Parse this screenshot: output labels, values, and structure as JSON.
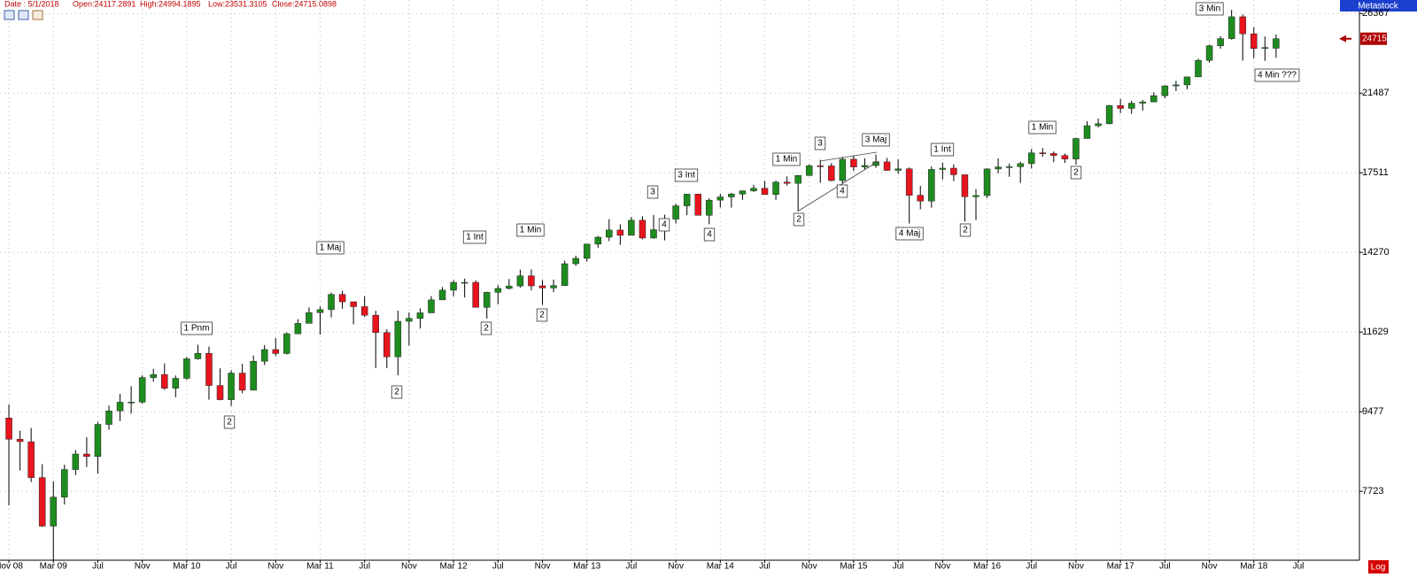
{
  "chart_data": {
    "type": "candlestick",
    "info": [
      "Date : 5/1/2018",
      "Open:24117.2891",
      "High:24994.1895",
      "Low:23531.3105",
      "Close:24715.0898"
    ],
    "badge": "Metastock",
    "scale_label": "Log",
    "price_tag": "24715",
    "log_scale": true,
    "grid": true,
    "up_color": "#1e8c1e",
    "down_color": "#e8141e",
    "ylim": [
      6470,
      27300
    ],
    "yticks": [
      7723,
      9477,
      11629,
      14270,
      17511,
      21487,
      26367
    ],
    "xlim": [
      -0.8,
      121.5
    ],
    "xticks": [
      {
        "value": 0,
        "label": "Nov 08"
      },
      {
        "value": 4,
        "label": "Mar 09"
      },
      {
        "value": 8,
        "label": "Jul"
      },
      {
        "value": 12,
        "label": "Nov"
      },
      {
        "value": 16,
        "label": "Mar 10"
      },
      {
        "value": 20,
        "label": "Jul"
      },
      {
        "value": 24,
        "label": "Nov"
      },
      {
        "value": 28,
        "label": "Mar 11"
      },
      {
        "value": 32,
        "label": "Jul"
      },
      {
        "value": 36,
        "label": "Nov"
      },
      {
        "value": 40,
        "label": "Mar 12"
      },
      {
        "value": 44,
        "label": "Jul"
      },
      {
        "value": 48,
        "label": "Nov"
      },
      {
        "value": 52,
        "label": "Mar 13"
      },
      {
        "value": 56,
        "label": "Jul"
      },
      {
        "value": 60,
        "label": "Nov"
      },
      {
        "value": 64,
        "label": "Mar 14"
      },
      {
        "value": 68,
        "label": "Jul"
      },
      {
        "value": 72,
        "label": "Nov"
      },
      {
        "value": 76,
        "label": "Mar 15"
      },
      {
        "value": 80,
        "label": "Jul"
      },
      {
        "value": 84,
        "label": "Nov"
      },
      {
        "value": 88,
        "label": "Mar 16"
      },
      {
        "value": 92,
        "label": "Jul"
      },
      {
        "value": 96,
        "label": "Nov"
      },
      {
        "value": 100,
        "label": "Mar 17"
      },
      {
        "value": 104,
        "label": "Jul"
      },
      {
        "value": 108,
        "label": "Nov"
      },
      {
        "value": 112,
        "label": "Mar 18"
      },
      {
        "value": 116,
        "label": "Jul"
      }
    ],
    "ohlc": [
      [
        9325,
        9654,
        7450,
        8829
      ],
      [
        8829,
        9026,
        8149,
        8776
      ],
      [
        8772,
        9088,
        7909,
        8001
      ],
      [
        8001,
        8281,
        7050,
        7063
      ],
      [
        7063,
        7925,
        6470,
        7609
      ],
      [
        7609,
        8269,
        7466,
        8168
      ],
      [
        8168,
        8587,
        8053,
        8500
      ],
      [
        8500,
        8877,
        8222,
        8447
      ],
      [
        8447,
        9229,
        8087,
        9172
      ],
      [
        9172,
        9630,
        9049,
        9496
      ],
      [
        9496,
        9918,
        9252,
        9712
      ],
      [
        9712,
        10119,
        9430,
        9713
      ],
      [
        9713,
        10406,
        9679,
        10345
      ],
      [
        10345,
        10580,
        10235,
        10428
      ],
      [
        10428,
        10729,
        10025,
        10067
      ],
      [
        10067,
        10403,
        9836,
        10325
      ],
      [
        10325,
        10908,
        10286,
        10857
      ],
      [
        10857,
        11258,
        10835,
        11009
      ],
      [
        11009,
        11205,
        9774,
        10137
      ],
      [
        10137,
        10594,
        9758,
        9774
      ],
      [
        9774,
        10545,
        9614,
        10466
      ],
      [
        10466,
        10720,
        9936,
        10015
      ],
      [
        10015,
        10948,
        10015,
        10788
      ],
      [
        10788,
        11245,
        10685,
        11118
      ],
      [
        11118,
        11451,
        10929,
        11006
      ],
      [
        11006,
        11625,
        10979,
        11578
      ],
      [
        11578,
        12021,
        11577,
        11892
      ],
      [
        11892,
        12391,
        11892,
        12226
      ],
      [
        12226,
        12419,
        11555,
        12320
      ],
      [
        12320,
        12876,
        12076,
        12811
      ],
      [
        12811,
        12929,
        12348,
        12570
      ],
      [
        12570,
        12571,
        11862,
        12414
      ],
      [
        12414,
        12753,
        12093,
        12143
      ],
      [
        12143,
        12284,
        10605,
        11614
      ],
      [
        11614,
        11717,
        10597,
        10913
      ],
      [
        10913,
        12284,
        10404,
        11955
      ],
      [
        11955,
        12231,
        11231,
        12046
      ],
      [
        12046,
        12360,
        11735,
        12218
      ],
      [
        12218,
        12756,
        12218,
        12633
      ],
      [
        12633,
        13056,
        12623,
        12952
      ],
      [
        12952,
        13289,
        12753,
        13212
      ],
      [
        13212,
        13338,
        12710,
        13214
      ],
      [
        13214,
        13280,
        12391,
        12393
      ],
      [
        12393,
        12899,
        12036,
        12880
      ],
      [
        12880,
        13124,
        12493,
        13009
      ],
      [
        13009,
        13331,
        12972,
        13091
      ],
      [
        13091,
        13653,
        13036,
        13437
      ],
      [
        13437,
        13662,
        12942,
        13096
      ],
      [
        13096,
        13290,
        12471,
        13026
      ],
      [
        13026,
        13311,
        12883,
        13104
      ],
      [
        13104,
        13969,
        13104,
        13861
      ],
      [
        13861,
        14150,
        13784,
        14054
      ],
      [
        14054,
        14585,
        13937,
        14579
      ],
      [
        14579,
        14888,
        14434,
        14840
      ],
      [
        14840,
        15542,
        14688,
        15116
      ],
      [
        15116,
        15340,
        14551,
        14910
      ],
      [
        14910,
        15634,
        14910,
        15500
      ],
      [
        15500,
        15658,
        14760,
        14810
      ],
      [
        14810,
        15709,
        14777,
        15130
      ],
      [
        15130,
        15721,
        14720,
        15546
      ],
      [
        15546,
        16175,
        15373,
        16086
      ],
      [
        16086,
        16588,
        15703,
        16577
      ],
      [
        16577,
        16588,
        15699,
        15699
      ],
      [
        15699,
        16398,
        15340,
        16322
      ],
      [
        16322,
        16588,
        16017,
        16458
      ],
      [
        16458,
        16631,
        16015,
        16581
      ],
      [
        16581,
        16736,
        16334,
        16717
      ],
      [
        16717,
        16978,
        16674,
        16827
      ],
      [
        16827,
        17152,
        16563,
        16563
      ],
      [
        16563,
        17153,
        16333,
        17098
      ],
      [
        17098,
        17350,
        16945,
        17043
      ],
      [
        17043,
        17395,
        15855,
        17391
      ],
      [
        17391,
        17895,
        17374,
        17828
      ],
      [
        17828,
        18103,
        17068,
        17823
      ],
      [
        17823,
        17951,
        17136,
        17165
      ],
      [
        17165,
        18244,
        17038,
        18133
      ],
      [
        18133,
        18289,
        17585,
        17776
      ],
      [
        17776,
        18175,
        17664,
        17841
      ],
      [
        17841,
        18351,
        17736,
        18011
      ],
      [
        18011,
        18190,
        17596,
        17620
      ],
      [
        17620,
        18137,
        17465,
        17690
      ],
      [
        17690,
        17750,
        15370,
        16528
      ],
      [
        16528,
        16933,
        15942,
        16285
      ],
      [
        16285,
        17799,
        16013,
        17664
      ],
      [
        17664,
        17978,
        17210,
        17720
      ],
      [
        17720,
        17896,
        17139,
        17425
      ],
      [
        17425,
        17425,
        15450,
        16466
      ],
      [
        16466,
        16795,
        15503,
        16517
      ],
      [
        16517,
        17716,
        16414,
        17685
      ],
      [
        17685,
        18167,
        17484,
        17774
      ],
      [
        17774,
        17934,
        17331,
        17787
      ],
      [
        17787,
        18016,
        17063,
        17930
      ],
      [
        17930,
        18622,
        17713,
        18432
      ],
      [
        18432,
        18668,
        18247,
        18401
      ],
      [
        18401,
        18495,
        17992,
        18308
      ],
      [
        18308,
        18399,
        17959,
        18142
      ],
      [
        18142,
        19153,
        17884,
        19124
      ],
      [
        19124,
        19987,
        19124,
        19763
      ],
      [
        19763,
        20126,
        19678,
        19864
      ],
      [
        19864,
        20851,
        19832,
        20812
      ],
      [
        20812,
        21169,
        20412,
        20663
      ],
      [
        20663,
        21071,
        20380,
        20941
      ],
      [
        20941,
        21113,
        20554,
        21009
      ],
      [
        21009,
        21535,
        20994,
        21350
      ],
      [
        21350,
        21929,
        21198,
        21891
      ],
      [
        21891,
        22179,
        21600,
        21948
      ],
      [
        21948,
        22420,
        21710,
        22405
      ],
      [
        22405,
        23485,
        22405,
        23377
      ],
      [
        23377,
        24328,
        23242,
        24272
      ],
      [
        24272,
        24876,
        24093,
        24719
      ],
      [
        24719,
        26617,
        24660,
        26149
      ],
      [
        26149,
        26307,
        23360,
        25029
      ],
      [
        25029,
        25449,
        23509,
        24103
      ],
      [
        24103,
        24858,
        23344,
        24163
      ],
      [
        24117.2891,
        24994.1895,
        23531.3105,
        24715.0898
      ]
    ],
    "annotations": [
      "1 Pnm",
      "2",
      "1 Maj",
      "2",
      "1 Int",
      "2",
      "1 Min",
      "2",
      "3",
      "4",
      "3 Int",
      "4",
      "1 Min",
      "2",
      "3",
      "4",
      "3 Maj",
      "4 Maj",
      "1 Int",
      "2",
      "1 Min",
      "2",
      "3 Min",
      "4 Min ???"
    ]
  }
}
